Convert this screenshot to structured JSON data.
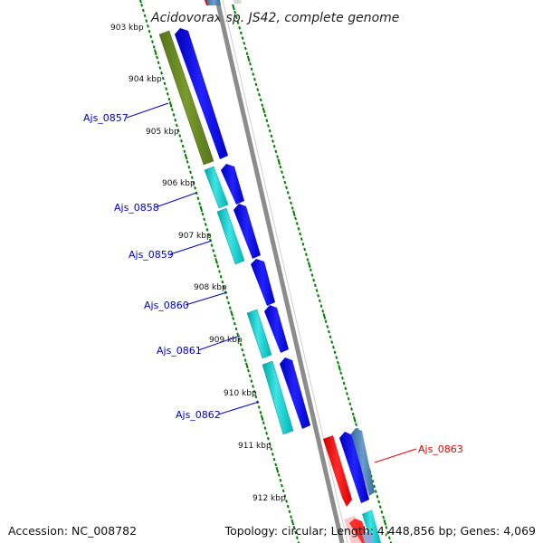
{
  "map": {
    "title": "Acidovorax sp. JS42, complete genome",
    "ruler_labels": [
      "903 kbp",
      "904 kbp",
      "905 kbp",
      "906 kbp",
      "907 kbp",
      "908 kbp",
      "909 kbp",
      "910 kbp",
      "911 kbp",
      "912 kbp"
    ],
    "gene_labels": [
      {
        "text": "Ajs_0857",
        "color": "#0000cc"
      },
      {
        "text": "Ajs_0858",
        "color": "#0000cc"
      },
      {
        "text": "Ajs_0859",
        "color": "#0000cc"
      },
      {
        "text": "Ajs_0860",
        "color": "#0000cc"
      },
      {
        "text": "Ajs_0861",
        "color": "#0000cc"
      },
      {
        "text": "Ajs_0862",
        "color": "#0000cc"
      },
      {
        "text": "Ajs_0863",
        "color": "#ee0000"
      }
    ],
    "colors": {
      "olive_gene": "#6b8e23",
      "cyan_gene": "#00c8c8",
      "blue_gene": "#0000ee",
      "red_gene": "#ff0000",
      "steel_gene": "#4682b4",
      "backbone": "#888888",
      "ticks": "#008000"
    }
  },
  "footer": {
    "accession": "Accession: NC_008782",
    "summary": "Topology: circular; Length: 4,448,856 bp; Genes: 4,069"
  }
}
